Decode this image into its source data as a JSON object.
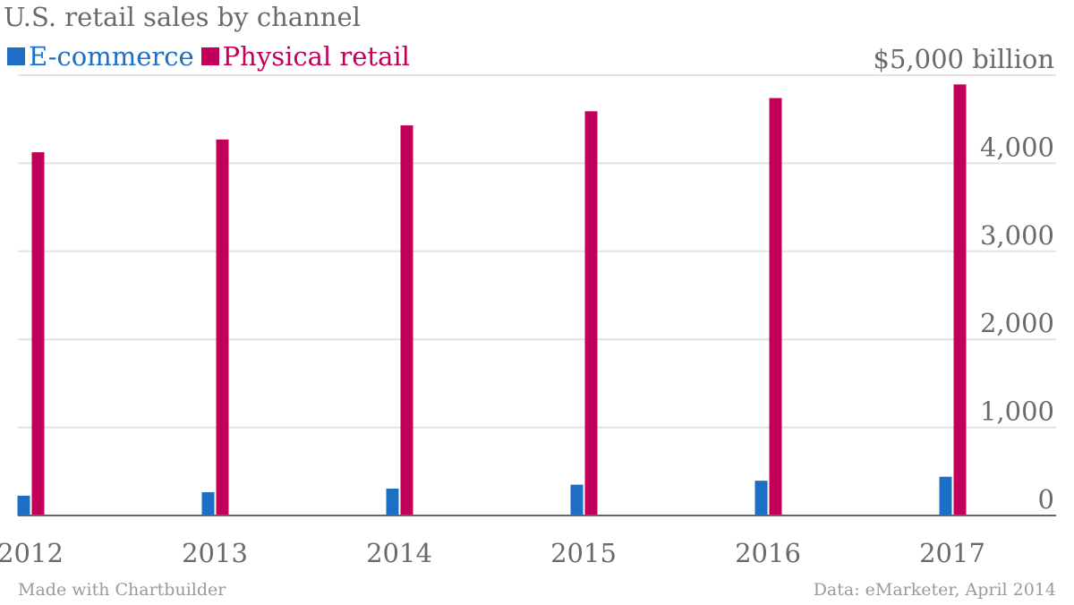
{
  "chart_data": {
    "type": "bar",
    "title": "U.S. retail sales by channel",
    "categories": [
      "2012",
      "2013",
      "2014",
      "2015",
      "2016",
      "2017"
    ],
    "series": [
      {
        "name": "E-commerce",
        "color": "#1c6fc4",
        "values": [
          225,
          265,
          305,
          350,
          395,
          440
        ]
      },
      {
        "name": "Physical retail",
        "color": "#c2005a",
        "values": [
          4125,
          4270,
          4430,
          4590,
          4740,
          4895
        ]
      }
    ],
    "y_ticks": [
      {
        "value": 0,
        "label": "0"
      },
      {
        "value": 1000,
        "label": "1,000"
      },
      {
        "value": 2000,
        "label": "2,000"
      },
      {
        "value": 3000,
        "label": "3,000"
      },
      {
        "value": 4000,
        "label": "4,000"
      },
      {
        "value": 5000,
        "label": "$5,000 billion"
      }
    ],
    "ylim": [
      0,
      5000
    ],
    "grid": true,
    "y_axis_side": "right",
    "legend_position": "top-left",
    "grid_color": "#e3e3e3",
    "axis_color": "#666666"
  },
  "footer": {
    "credit": "Made with Chartbuilder",
    "source": "Data: eMarketer, April 2014"
  }
}
